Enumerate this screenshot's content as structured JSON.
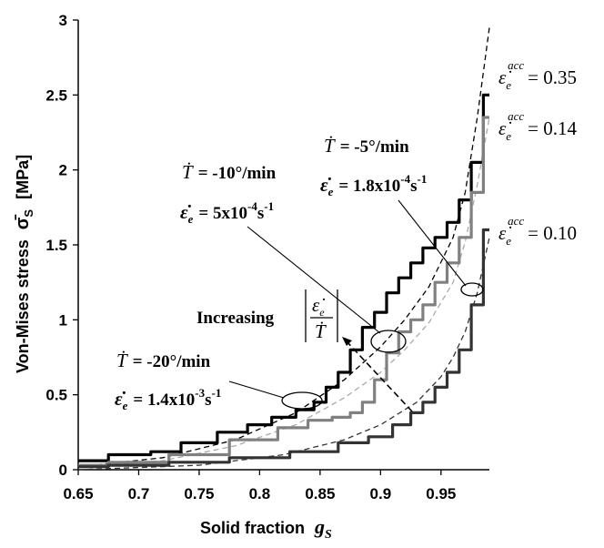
{
  "chart_data": {
    "type": "line",
    "xlabel": "Solid fraction",
    "xlabel_symbol": "g",
    "xlabel_sub": "S",
    "ylabel": "Von-Mises stress",
    "ylabel_symbol": "σ̄",
    "ylabel_sub": "S",
    "ylabel_unit": "[MPa]",
    "xlim": [
      0.65,
      0.99
    ],
    "ylim": [
      0,
      3
    ],
    "xticks": [
      "0.65",
      "0.7",
      "0.75",
      "0.8",
      "0.85",
      "0.9",
      "0.95"
    ],
    "yticks": [
      "0",
      "0.5",
      "1",
      "1.5",
      "2",
      "2.5",
      "3"
    ],
    "series": [
      {
        "label_lhs": "ε̇",
        "label_sub": "e",
        "label_sup": "acc",
        "label_rhs": "= 0.35",
        "color": "#000000",
        "x": [
          0.65,
          0.7,
          0.72,
          0.75,
          0.78,
          0.8,
          0.82,
          0.84,
          0.85,
          0.86,
          0.87,
          0.88,
          0.89,
          0.9,
          0.91,
          0.92,
          0.93,
          0.94,
          0.95,
          0.96,
          0.97,
          0.98,
          0.99
        ],
        "y": [
          0.06,
          0.1,
          0.12,
          0.18,
          0.25,
          0.3,
          0.35,
          0.4,
          0.45,
          0.55,
          0.65,
          0.8,
          0.95,
          1.05,
          1.18,
          1.28,
          1.38,
          1.48,
          1.55,
          1.65,
          1.8,
          2.05,
          2.5
        ]
      },
      {
        "label_lhs": "ε̇",
        "label_sub": "e",
        "label_sup": "acc",
        "label_rhs": "= 0.14",
        "color": "#808080",
        "x": [
          0.65,
          0.7,
          0.75,
          0.8,
          0.83,
          0.85,
          0.87,
          0.88,
          0.89,
          0.9,
          0.91,
          0.92,
          0.93,
          0.94,
          0.95,
          0.96,
          0.97,
          0.98,
          0.99
        ],
        "y": [
          0.03,
          0.05,
          0.1,
          0.2,
          0.28,
          0.33,
          0.35,
          0.38,
          0.45,
          0.6,
          0.78,
          0.92,
          1.0,
          1.1,
          1.25,
          1.38,
          1.55,
          1.85,
          2.35
        ]
      },
      {
        "label_lhs": "ε̇",
        "label_sub": "e",
        "label_sup": "acc",
        "label_rhs": "= 0.10",
        "color": "#333333",
        "x": [
          0.65,
          0.7,
          0.75,
          0.8,
          0.85,
          0.88,
          0.9,
          0.92,
          0.93,
          0.94,
          0.95,
          0.96,
          0.97,
          0.98,
          0.99
        ],
        "y": [
          0.02,
          0.03,
          0.05,
          0.08,
          0.12,
          0.18,
          0.22,
          0.3,
          0.38,
          0.45,
          0.55,
          0.65,
          0.8,
          1.1,
          1.6
        ]
      }
    ],
    "dashed_fits": [
      {
        "color": "#000000",
        "x": [
          0.65,
          0.72,
          0.78,
          0.83,
          0.87,
          0.9,
          0.92,
          0.94,
          0.96,
          0.97,
          0.98,
          0.99
        ],
        "y": [
          0.02,
          0.08,
          0.2,
          0.38,
          0.6,
          0.82,
          1.0,
          1.22,
          1.55,
          1.85,
          2.35,
          2.95
        ]
      },
      {
        "color": "#aaaaaa",
        "x": [
          0.65,
          0.72,
          0.78,
          0.83,
          0.87,
          0.9,
          0.92,
          0.94,
          0.96,
          0.97,
          0.98,
          0.99
        ],
        "y": [
          0.02,
          0.06,
          0.16,
          0.3,
          0.48,
          0.65,
          0.8,
          0.98,
          1.25,
          1.52,
          1.9,
          2.35
        ]
      },
      {
        "color": "#333333",
        "x": [
          0.65,
          0.75,
          0.82,
          0.87,
          0.9,
          0.93,
          0.95,
          0.96,
          0.97,
          0.98,
          0.99
        ],
        "y": [
          0.0,
          0.03,
          0.1,
          0.2,
          0.3,
          0.45,
          0.62,
          0.75,
          0.92,
          1.18,
          1.55
        ]
      }
    ],
    "annotations": [
      {
        "id": "a20",
        "t_label": "Ṫ",
        "t_value": "= -20°/min",
        "e_label": "ε̇",
        "e_sub": "e",
        "e_value": "= 1.4x10",
        "e_exp": "-3",
        "e_unit": "s",
        "e_unit_exp": "-1"
      },
      {
        "id": "a10",
        "t_label": "Ṫ",
        "t_value": "= -10°/min",
        "e_label": "ε̇",
        "e_sub": "e",
        "e_value": "= 5x10",
        "e_exp": "-4",
        "e_unit": "s",
        "e_unit_exp": "-1"
      },
      {
        "id": "a5",
        "t_label": "Ṫ",
        "t_value": "= -5°/min",
        "e_label": "ε̇",
        "e_sub": "e",
        "e_value": "= 1.8x10",
        "e_exp": "-4",
        "e_unit": "s",
        "e_unit_exp": "-1"
      }
    ],
    "increasing_label": "Increasing",
    "frac_num": "ε̇",
    "frac_num_sub": "e",
    "frac_den": "Ṫ",
    "grid": false,
    "legend": "none"
  }
}
